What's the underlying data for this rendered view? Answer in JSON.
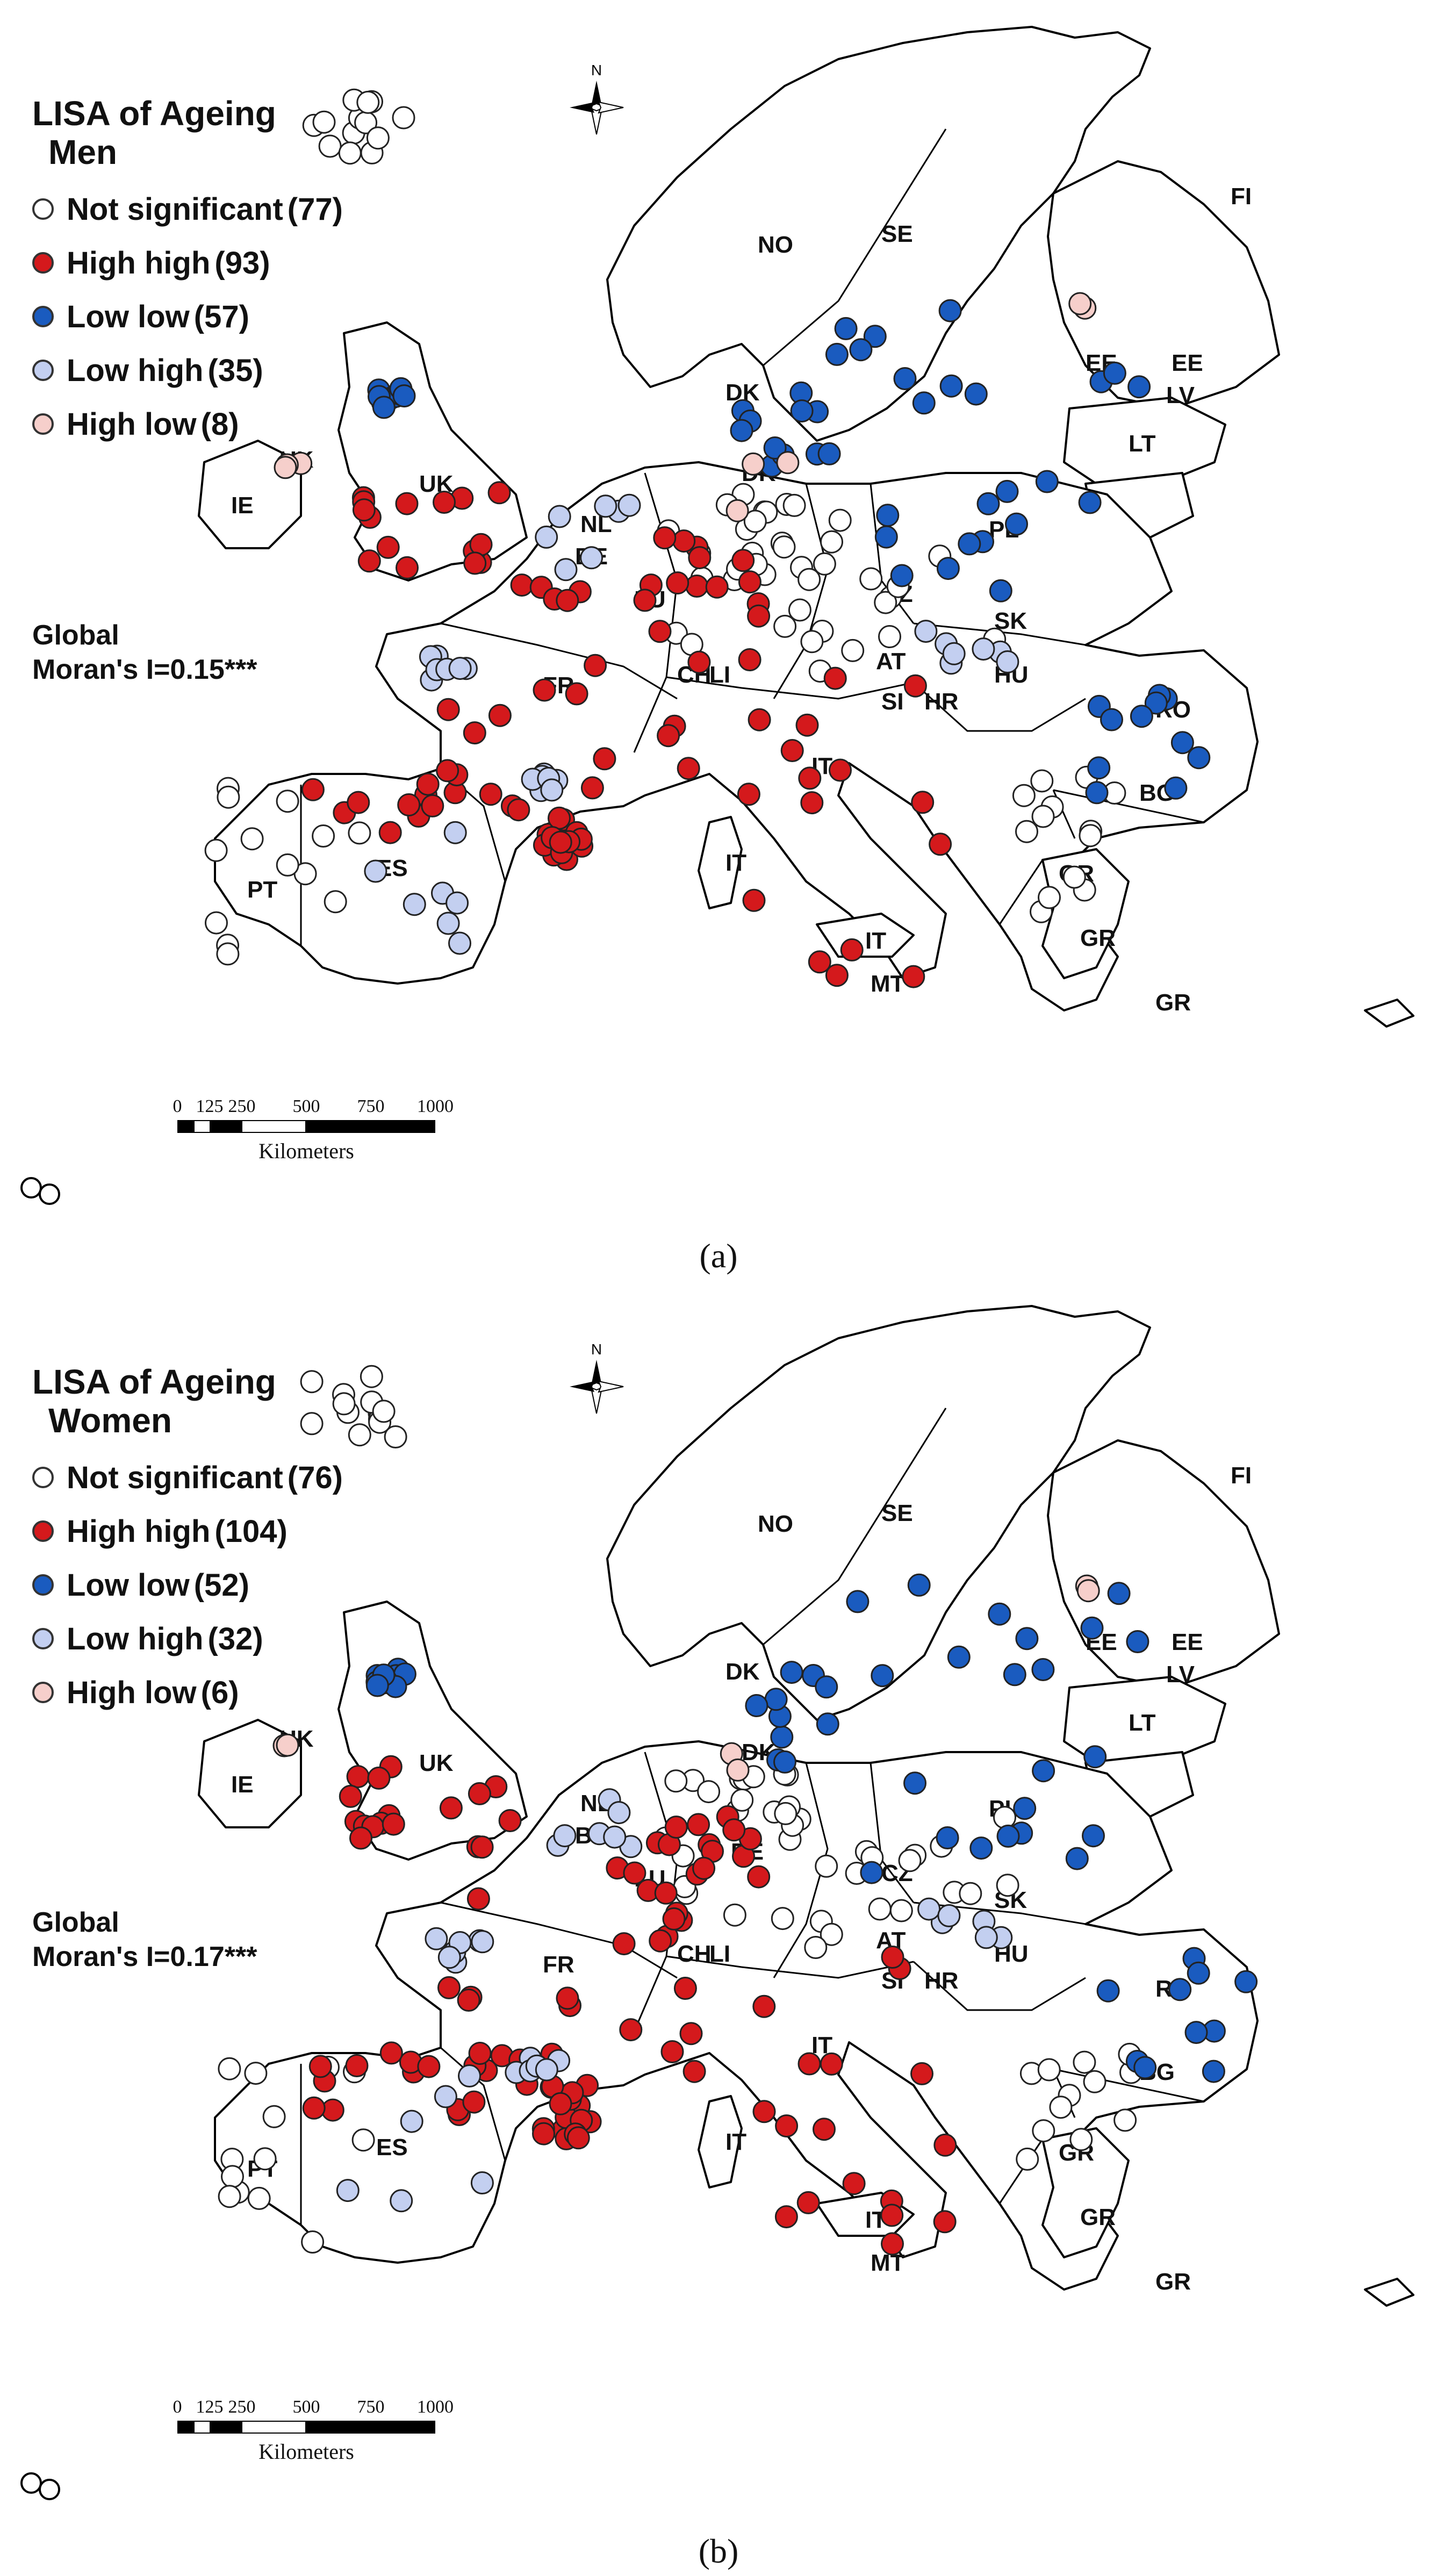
{
  "panels": [
    {
      "id": "a",
      "panel_label": "(a)",
      "legend": {
        "title": "LISA of Ageing",
        "subtitle": "Men",
        "items": [
          {
            "label": "Not significant",
            "count": "(77)",
            "color": "#ffffff"
          },
          {
            "label": "High high",
            "count": "(93)",
            "color": "#d4191c"
          },
          {
            "label": "Low low",
            "count": "(57)",
            "color": "#1a5bbf"
          },
          {
            "label": "Low high",
            "count": "(35)",
            "color": "#c3cff0"
          },
          {
            "label": "High low",
            "count": "(8)",
            "color": "#f6cfcb"
          }
        ]
      },
      "moran_title": "Global",
      "moran_value": "Moran's I=0.15***"
    },
    {
      "id": "b",
      "panel_label": "(b)",
      "legend": {
        "title": "LISA of Ageing",
        "subtitle": "Women",
        "items": [
          {
            "label": "Not significant",
            "count": "(76)",
            "color": "#ffffff"
          },
          {
            "label": "High high",
            "count": "(104)",
            "color": "#d4191c"
          },
          {
            "label": "Low low",
            "count": "(52)",
            "color": "#1a5bbf"
          },
          {
            "label": "Low high",
            "count": "(32)",
            "color": "#c3cff0"
          },
          {
            "label": "High low",
            "count": "(6)",
            "color": "#f6cfcb"
          }
        ]
      },
      "moran_title": "Global",
      "moran_value": "Moran's I=0.17***"
    }
  ],
  "north_label": "N",
  "scale": {
    "ticks": [
      "0",
      "125",
      "250",
      "500",
      "750",
      "1000"
    ],
    "unit": "Kilometers"
  },
  "country_labels": [
    "NO",
    "SE",
    "FI",
    "EE",
    "EE",
    "LV",
    "LT",
    "DK",
    "DK",
    "PL",
    "UK",
    "UK",
    "IE",
    "NL",
    "BE",
    "LU",
    "DE",
    "CZ",
    "SK",
    "FR",
    "CH",
    "LI",
    "AT",
    "SI",
    "HR",
    "HU",
    "RO",
    "BG",
    "IT",
    "IT",
    "IT",
    "MT",
    "ES",
    "PT",
    "GR",
    "GR",
    "GR"
  ]
}
